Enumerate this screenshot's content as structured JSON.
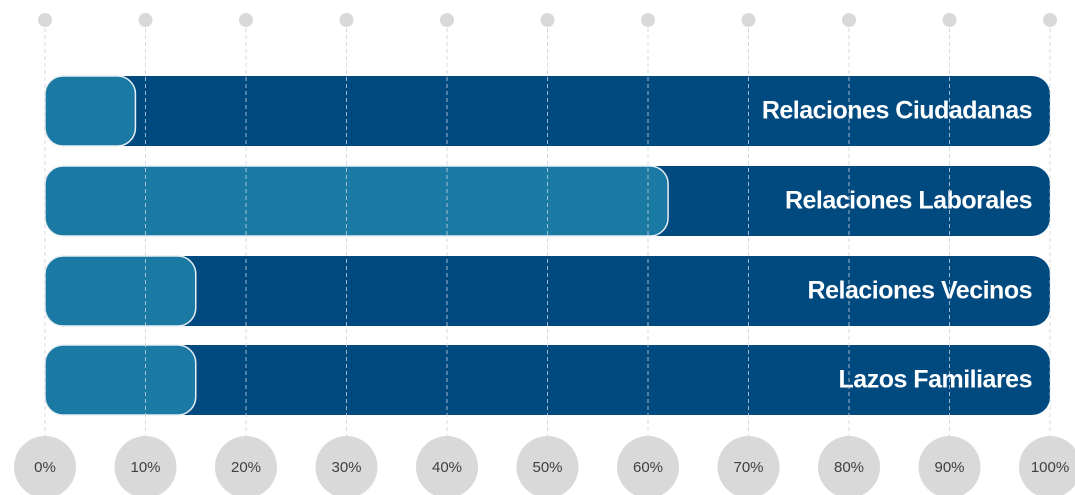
{
  "chart_data": {
    "type": "bar",
    "orientation": "horizontal",
    "categories": [
      "Relaciones Ciudadanas",
      "Relaciones Laborales",
      "Relaciones Vecinos",
      "Lazos Familiares"
    ],
    "values": [
      9,
      62,
      15,
      15
    ],
    "color": "#1b7aa3",
    "track_color": "#004a80",
    "xlim": [
      0,
      100
    ],
    "xticks": [
      {
        "value": 0,
        "label": "0%"
      },
      {
        "value": 10,
        "label": "10%"
      },
      {
        "value": 20,
        "label": "20%"
      },
      {
        "value": 30,
        "label": "30%"
      },
      {
        "value": 40,
        "label": "40%"
      },
      {
        "value": 50,
        "label": "50%"
      },
      {
        "value": 60,
        "label": "60%"
      },
      {
        "value": 70,
        "label": "70%"
      },
      {
        "value": 80,
        "label": "80%"
      },
      {
        "value": 90,
        "label": "90%"
      },
      {
        "value": 100,
        "label": "100%"
      }
    ],
    "grid": true
  }
}
